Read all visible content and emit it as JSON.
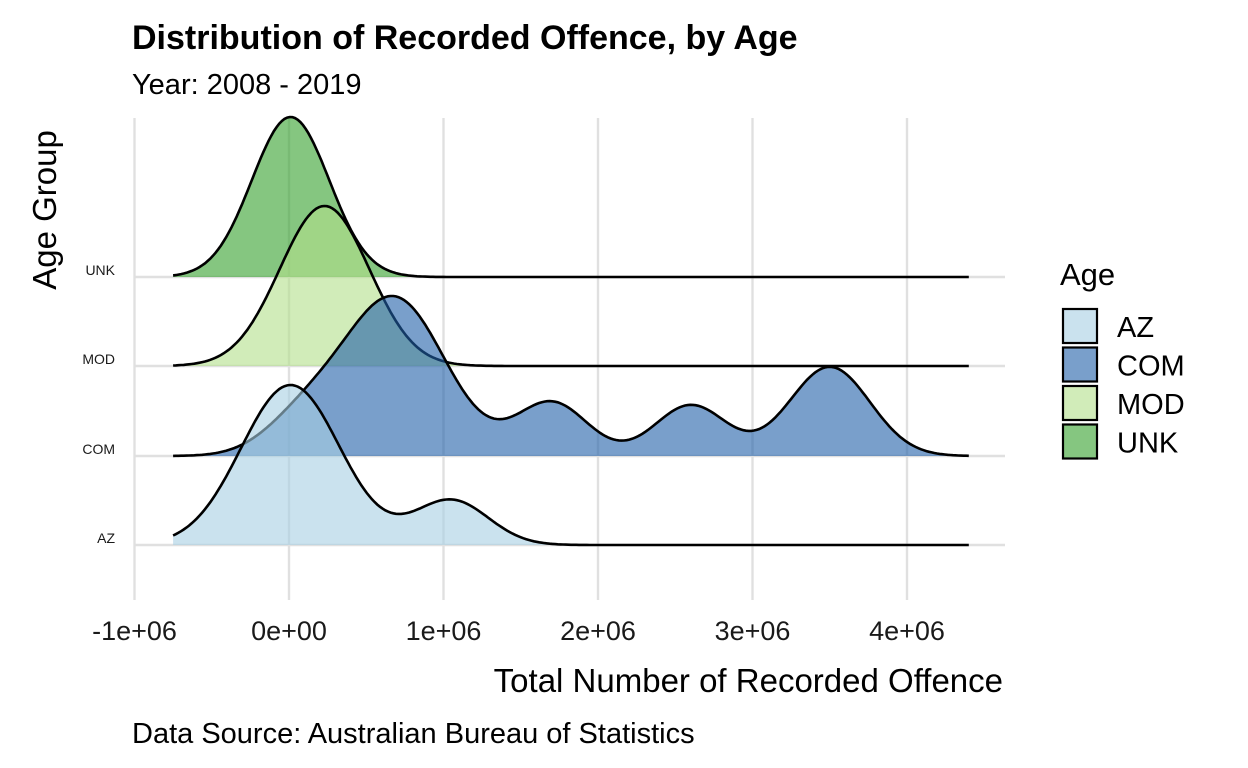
{
  "title": "Distribution of Recorded Offence, by Age",
  "subtitle": "Year: 2008 - 2019",
  "caption": "Data Source: Australian Bureau of Statistics",
  "chart_data": {
    "type": "ridgeline density",
    "xlabel": "Total Number of Recorded Offence",
    "ylabel": "Age Group",
    "xlim": [
      -1000000,
      4600000
    ],
    "density_range": [
      -750000,
      4400000
    ],
    "x_ticks": [
      -1000000,
      0,
      1000000,
      2000000,
      3000000,
      4000000
    ],
    "x_tick_labels": [
      "-1e+06",
      "0e+00",
      "1e+06",
      "2e+06",
      "3e+06",
      "4e+06"
    ],
    "categories": [
      "AZ",
      "COM",
      "MOD",
      "UNK"
    ],
    "grid": "on",
    "legend": {
      "title": "Age",
      "position": "right"
    },
    "series": [
      {
        "name": "AZ",
        "color": "#a6cee3",
        "peaks": [
          {
            "x": 10000,
            "sd": 320000,
            "height": 1.0
          },
          {
            "x": 1050000,
            "sd": 240000,
            "height": 0.28
          }
        ]
      },
      {
        "name": "COM",
        "color": "#1f5fa8",
        "peaks": [
          {
            "x": 680000,
            "sd": 330000,
            "height": 0.62
          },
          {
            "x": 90000,
            "sd": 250000,
            "height": 0.13
          },
          {
            "x": 1700000,
            "sd": 230000,
            "height": 0.21
          },
          {
            "x": 2600000,
            "sd": 230000,
            "height": 0.2
          },
          {
            "x": 3500000,
            "sd": 260000,
            "height": 0.35
          }
        ]
      },
      {
        "name": "MOD",
        "color": "#b2df8a",
        "peaks": [
          {
            "x": 230000,
            "sd": 290000,
            "height": 1.0
          }
        ]
      },
      {
        "name": "UNK",
        "color": "#33a02c",
        "peaks": [
          {
            "x": 10000,
            "sd": 250000,
            "height": 1.0
          }
        ]
      }
    ]
  }
}
